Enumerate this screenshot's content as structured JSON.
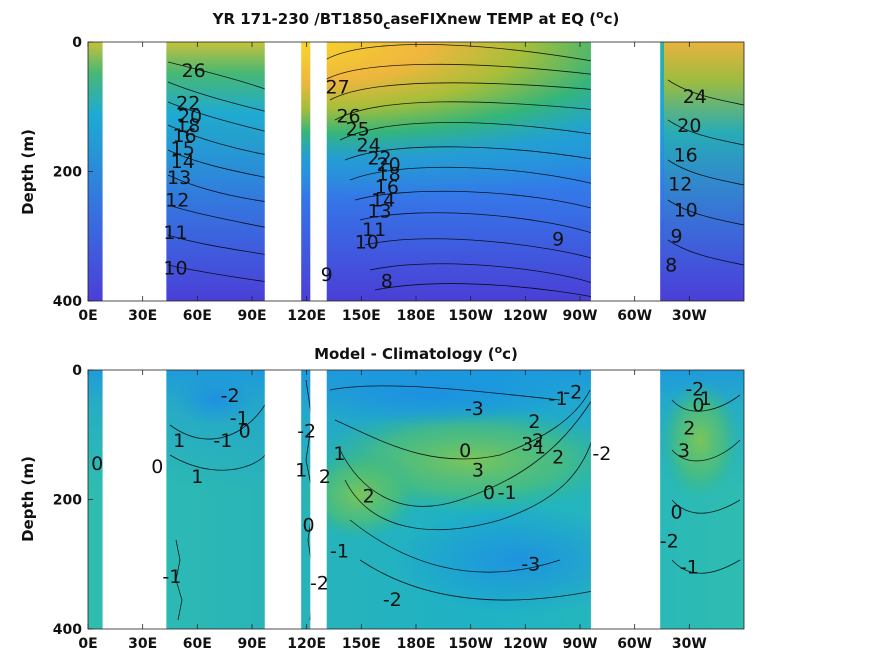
{
  "chart_data": [
    {
      "type": "heatmap",
      "title": "YR 171-230 /BT1850",
      "title_subscript": "c",
      "title_suffix": "aseFIXnew TEMP at EQ (",
      "title_unit_sup": "o",
      "title_unit_tail": "c)",
      "ylabel": "Depth (m)",
      "xlabel": "",
      "x_tick_labels": [
        "0E",
        "30E",
        "60E",
        "90E",
        "120E",
        "150E",
        "180E",
        "150W",
        "120W",
        "90W",
        "60W",
        "30W"
      ],
      "y_tick_labels": [
        "0",
        "200",
        "400"
      ],
      "xlim_deg_east": [
        0,
        360
      ],
      "ylim": [
        400,
        0
      ],
      "land_gaps_deg_east": [
        [
          8,
          43
        ],
        [
          97,
          117
        ],
        [
          122,
          131
        ],
        [
          276,
          314
        ]
      ],
      "colormap": "parula",
      "contour_labels": [
        {
          "text": "27",
          "lon": 137,
          "depth": 70
        },
        {
          "text": "26",
          "lon": 58,
          "depth": 45
        },
        {
          "text": "26",
          "lon": 143,
          "depth": 115
        },
        {
          "text": "25",
          "lon": 148,
          "depth": 135
        },
        {
          "text": "24",
          "lon": 154,
          "depth": 160
        },
        {
          "text": "22",
          "lon": 160,
          "depth": 180
        },
        {
          "text": "20",
          "lon": 165,
          "depth": 190
        },
        {
          "text": "18",
          "lon": 165,
          "depth": 205
        },
        {
          "text": "16",
          "lon": 164,
          "depth": 225
        },
        {
          "text": "14",
          "lon": 162,
          "depth": 245
        },
        {
          "text": "13",
          "lon": 160,
          "depth": 262
        },
        {
          "text": "11",
          "lon": 157,
          "depth": 290
        },
        {
          "text": "10",
          "lon": 153,
          "depth": 310
        },
        {
          "text": "9",
          "lon": 131,
          "depth": 360
        },
        {
          "text": "8",
          "lon": 164,
          "depth": 370
        },
        {
          "text": "9",
          "lon": 258,
          "depth": 305
        },
        {
          "text": "22",
          "lon": 55,
          "depth": 95
        },
        {
          "text": "20",
          "lon": 56,
          "depth": 115
        },
        {
          "text": "18",
          "lon": 55,
          "depth": 130
        },
        {
          "text": "16",
          "lon": 53,
          "depth": 145
        },
        {
          "text": "15",
          "lon": 52,
          "depth": 165
        },
        {
          "text": "14",
          "lon": 52,
          "depth": 185
        },
        {
          "text": "13",
          "lon": 50,
          "depth": 210
        },
        {
          "text": "12",
          "lon": 49,
          "depth": 245
        },
        {
          "text": "11",
          "lon": 48,
          "depth": 295
        },
        {
          "text": "10",
          "lon": 48,
          "depth": 350
        },
        {
          "text": "24",
          "lon": 333,
          "depth": 85
        },
        {
          "text": "20",
          "lon": 330,
          "depth": 130
        },
        {
          "text": "16",
          "lon": 328,
          "depth": 175
        },
        {
          "text": "12",
          "lon": 325,
          "depth": 220
        },
        {
          "text": "10",
          "lon": 328,
          "depth": 260
        },
        {
          "text": "9",
          "lon": 323,
          "depth": 300
        },
        {
          "text": "8",
          "lon": 320,
          "depth": 345
        }
      ]
    },
    {
      "type": "heatmap",
      "title": "Model - Climatology (",
      "title_unit_sup": "o",
      "title_unit_tail": "c)",
      "ylabel": "Depth (m)",
      "xlabel": "",
      "x_tick_labels": [
        "0E",
        "30E",
        "60E",
        "90E",
        "120E",
        "150E",
        "180E",
        "150W",
        "120W",
        "90W",
        "60W",
        "30W"
      ],
      "y_tick_labels": [
        "0",
        "200",
        "400"
      ],
      "xlim_deg_east": [
        0,
        360
      ],
      "ylim": [
        400,
        0
      ],
      "land_gaps_deg_east": [
        [
          8,
          43
        ],
        [
          97,
          117
        ],
        [
          122,
          131
        ],
        [
          276,
          314
        ]
      ],
      "colormap": "parula",
      "contour_labels": [
        {
          "text": "0",
          "lon": 5,
          "depth": 145
        },
        {
          "text": "0",
          "lon": 38,
          "depth": 150
        },
        {
          "text": "1",
          "lon": 50,
          "depth": 110
        },
        {
          "text": "1",
          "lon": 60,
          "depth": 165
        },
        {
          "text": "-2",
          "lon": 78,
          "depth": 40
        },
        {
          "text": "-1",
          "lon": 83,
          "depth": 75
        },
        {
          "text": "0",
          "lon": 86,
          "depth": 95
        },
        {
          "text": "-1",
          "lon": 74,
          "depth": 110
        },
        {
          "text": "-1",
          "lon": 46,
          "depth": 320
        },
        {
          "text": "-2",
          "lon": 120,
          "depth": 95
        },
        {
          "text": "0",
          "lon": 121,
          "depth": 240
        },
        {
          "text": "1",
          "lon": 117,
          "depth": 155
        },
        {
          "text": "2",
          "lon": 130,
          "depth": 165
        },
        {
          "text": "1",
          "lon": 138,
          "depth": 130
        },
        {
          "text": "2",
          "lon": 154,
          "depth": 195
        },
        {
          "text": "-1",
          "lon": 138,
          "depth": 280
        },
        {
          "text": "-2",
          "lon": 127,
          "depth": 330
        },
        {
          "text": "-2",
          "lon": 167,
          "depth": 355
        },
        {
          "text": "-3",
          "lon": 212,
          "depth": 60
        },
        {
          "text": "0",
          "lon": 207,
          "depth": 125
        },
        {
          "text": "3",
          "lon": 214,
          "depth": 155
        },
        {
          "text": "0",
          "lon": 220,
          "depth": 190
        },
        {
          "text": "-1",
          "lon": 230,
          "depth": 190
        },
        {
          "text": "2",
          "lon": 245,
          "depth": 80
        },
        {
          "text": "3",
          "lon": 241,
          "depth": 115
        },
        {
          "text": "2",
          "lon": 247,
          "depth": 110
        },
        {
          "text": "1",
          "lon": 248,
          "depth": 120
        },
        {
          "text": "2",
          "lon": 258,
          "depth": 135
        },
        {
          "text": "-2",
          "lon": 266,
          "depth": 35
        },
        {
          "text": "-1",
          "lon": 258,
          "depth": 45
        },
        {
          "text": "-2",
          "lon": 282,
          "depth": 130
        },
        {
          "text": "-3",
          "lon": 243,
          "depth": 300
        },
        {
          "text": "-2",
          "lon": 333,
          "depth": 30
        },
        {
          "text": "1",
          "lon": 339,
          "depth": 45
        },
        {
          "text": "0",
          "lon": 335,
          "depth": 55
        },
        {
          "text": "2",
          "lon": 330,
          "depth": 90
        },
        {
          "text": "3",
          "lon": 327,
          "depth": 125
        },
        {
          "text": "0",
          "lon": 323,
          "depth": 220
        },
        {
          "text": "-2",
          "lon": 319,
          "depth": 265
        },
        {
          "text": "-1",
          "lon": 330,
          "depth": 305
        }
      ]
    }
  ]
}
